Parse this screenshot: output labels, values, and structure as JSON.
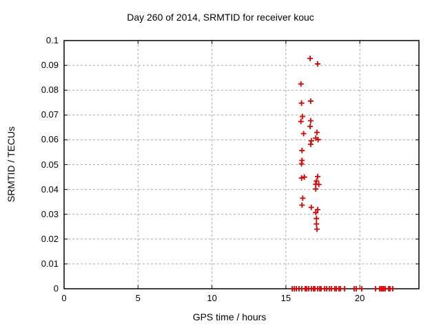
{
  "figure": {
    "background": "#ffffff"
  },
  "colors": {
    "marker": "#e00000",
    "grid": "#a8a8a8",
    "axis": "#000000"
  },
  "chart_data": {
    "type": "scatter",
    "title": "Day 260 of 2014, SRMTID for receiver kouc",
    "xlabel": "GPS time / hours",
    "ylabel": "SRMTID / TECUs",
    "xlim": [
      0,
      24
    ],
    "ylim": [
      0,
      0.1
    ],
    "xticks": [
      0,
      5,
      10,
      15,
      20
    ],
    "xtick_labels": [
      "0",
      "5",
      "10",
      "15",
      "20"
    ],
    "yticks": [
      0,
      0.01,
      0.02,
      0.03,
      0.04,
      0.05,
      0.06,
      0.07,
      0.08,
      0.09,
      0.1
    ],
    "ytick_labels": [
      "0",
      "0.01",
      "0.02",
      "0.03",
      "0.04",
      "0.05",
      "0.06",
      "0.07",
      "0.08",
      "0.09",
      "0.1"
    ],
    "grid": true,
    "legend": "none",
    "marker": "plus",
    "series": [
      {
        "name": "SRMTID",
        "points": [
          [
            16.64,
            0.0928
          ],
          [
            17.15,
            0.0906
          ],
          [
            16.02,
            0.0825
          ],
          [
            16.68,
            0.0756
          ],
          [
            16.06,
            0.0748
          ],
          [
            16.12,
            0.0694
          ],
          [
            16.68,
            0.0677
          ],
          [
            16.02,
            0.0674
          ],
          [
            16.64,
            0.0654
          ],
          [
            17.1,
            0.063
          ],
          [
            16.2,
            0.0625
          ],
          [
            17.02,
            0.0607
          ],
          [
            17.18,
            0.0601
          ],
          [
            16.72,
            0.0596
          ],
          [
            16.68,
            0.0582
          ],
          [
            16.09,
            0.0557
          ],
          [
            16.09,
            0.0517
          ],
          [
            16.06,
            0.0503
          ],
          [
            16.25,
            0.045
          ],
          [
            17.15,
            0.0452
          ],
          [
            16.06,
            0.0446
          ],
          [
            17.07,
            0.0434
          ],
          [
            17.02,
            0.0421
          ],
          [
            17.23,
            0.042
          ],
          [
            17.02,
            0.0402
          ],
          [
            16.14,
            0.0365
          ],
          [
            16.09,
            0.0337
          ],
          [
            16.72,
            0.0328
          ],
          [
            17.15,
            0.0319
          ],
          [
            17.02,
            0.0307
          ],
          [
            17.07,
            0.0283
          ],
          [
            17.07,
            0.0261
          ],
          [
            17.1,
            0.024
          ],
          [
            15.43,
            0
          ],
          [
            15.57,
            0
          ],
          [
            15.71,
            0
          ],
          [
            15.89,
            0
          ],
          [
            16.08,
            0
          ],
          [
            16.31,
            0
          ],
          [
            16.4,
            0
          ],
          [
            16.54,
            0
          ],
          [
            16.73,
            0
          ],
          [
            16.87,
            0
          ],
          [
            16.96,
            0
          ],
          [
            17.15,
            0
          ],
          [
            17.29,
            0
          ],
          [
            17.38,
            0
          ],
          [
            17.62,
            0
          ],
          [
            17.76,
            0
          ],
          [
            17.94,
            0
          ],
          [
            18.08,
            0
          ],
          [
            18.31,
            0
          ],
          [
            18.41,
            0
          ],
          [
            18.59,
            0
          ],
          [
            18.69,
            0
          ],
          [
            18.97,
            0
          ],
          [
            19.62,
            0
          ],
          [
            19.76,
            0
          ],
          [
            20.13,
            0
          ],
          [
            21.06,
            0
          ],
          [
            21.34,
            0
          ],
          [
            21.44,
            0
          ],
          [
            21.53,
            0
          ],
          [
            21.62,
            0
          ],
          [
            21.72,
            0
          ],
          [
            21.95,
            0
          ],
          [
            22.04,
            0
          ],
          [
            22.23,
            0
          ]
        ]
      }
    ]
  }
}
